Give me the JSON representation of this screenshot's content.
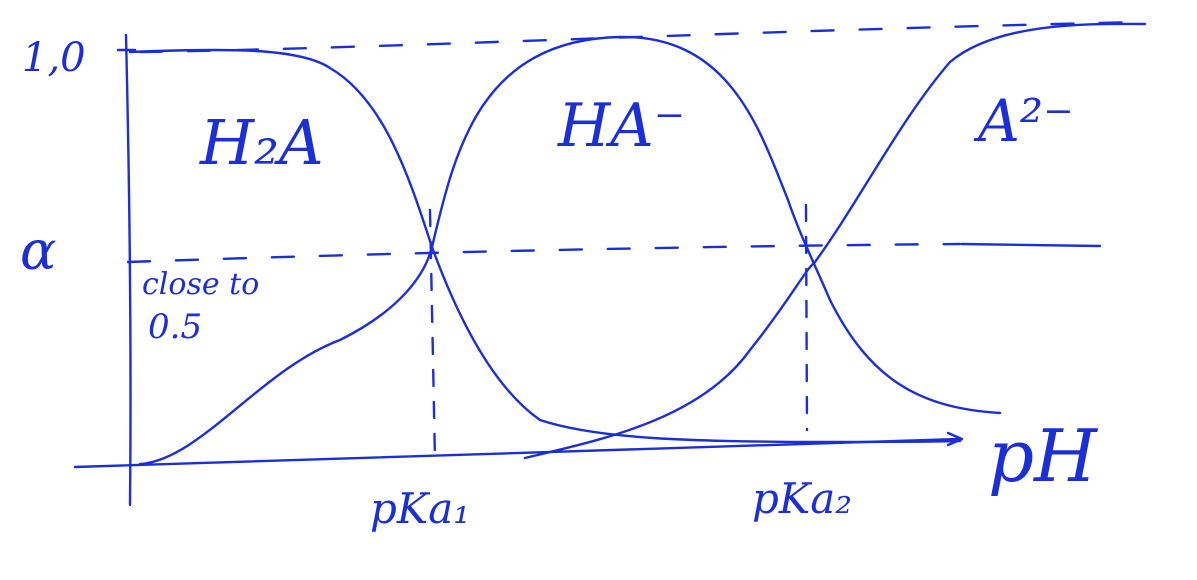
{
  "y_axis": {
    "top_tick": "1,0",
    "symbol": "α"
  },
  "x_axis": {
    "label": "pH"
  },
  "species": {
    "diprotic": "H₂A",
    "monoprotic": "HA⁻",
    "fully_deprotonated": "A²⁻"
  },
  "markers": {
    "pka1": "pKa₁",
    "pka2": "pKa₂"
  },
  "annotation": {
    "line1": "close to",
    "line2": "0.5"
  },
  "colors": {
    "ink": "#1c2fd6",
    "background": "#ffffff"
  }
}
